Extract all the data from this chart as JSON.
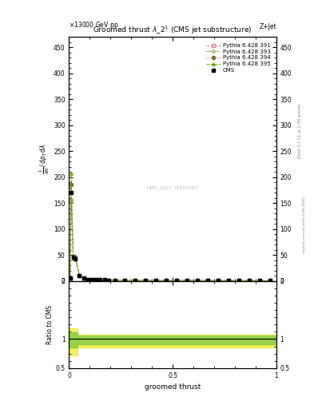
{
  "title": "Groomed thrust $\\lambda\\_2^1$ (CMS jet substructure)",
  "header_left": "\\times13000 GeV pp",
  "header_right": "Z+Jet",
  "xlabel": "groomed thrust",
  "ylabel_lines": [
    "mathrm d^2N",
    "mathrm d p_T mathrm d lambda",
    "1",
    "mathrm d N / mathrm d p_T mathrm d lambda"
  ],
  "cms_label": "CMS_2021_I1920187",
  "rivet_label": "Rivet 3.1.10, ≥ 2.7M events",
  "mcplots_label": "mcplots.cern.ch [arXiv:1306.3436]",
  "xlim": [
    0,
    1
  ],
  "ylim_main": [
    0,
    470
  ],
  "ylim_ratio": [
    0.5,
    2.0
  ],
  "ytick_main": [
    0,
    50,
    100,
    150,
    200,
    250,
    300,
    350,
    400,
    450
  ],
  "data_x": [
    0.005,
    0.01,
    0.02,
    0.03,
    0.05,
    0.07,
    0.09,
    0.11,
    0.13,
    0.15,
    0.17,
    0.19,
    0.22,
    0.27,
    0.32,
    0.37,
    0.42,
    0.47,
    0.52,
    0.57,
    0.62,
    0.67,
    0.72,
    0.77,
    0.82,
    0.87,
    0.92,
    0.97
  ],
  "cms_y": [
    5,
    170,
    45,
    42,
    10,
    5,
    3,
    2.5,
    2,
    2,
    1.8,
    1.5,
    1.3,
    1.2,
    1.1,
    1.0,
    0.9,
    0.9,
    0.85,
    0.8,
    0.8,
    0.75,
    0.7,
    0.65,
    0.6,
    0.55,
    0.5,
    0.45
  ],
  "py391_y": [
    4,
    155,
    44,
    43,
    10,
    4.8,
    2.9,
    2.4,
    1.9,
    1.9,
    1.7,
    1.4,
    1.2,
    1.1,
    1.0,
    0.95,
    0.88,
    0.85,
    0.82,
    0.78,
    0.76,
    0.72,
    0.68,
    0.63,
    0.58,
    0.53,
    0.48,
    0.42
  ],
  "py393_y": [
    4,
    155,
    44,
    43,
    10,
    4.8,
    2.9,
    2.4,
    1.9,
    1.9,
    1.7,
    1.4,
    1.2,
    1.1,
    1.0,
    0.95,
    0.88,
    0.85,
    0.82,
    0.78,
    0.76,
    0.72,
    0.68,
    0.63,
    0.58,
    0.53,
    0.48,
    0.42
  ],
  "py394_y": [
    5,
    185,
    47,
    46,
    10.5,
    5.1,
    3.1,
    2.6,
    2.0,
    2.0,
    1.85,
    1.55,
    1.35,
    1.25,
    1.15,
    1.05,
    0.95,
    0.92,
    0.88,
    0.83,
    0.81,
    0.77,
    0.73,
    0.68,
    0.62,
    0.57,
    0.52,
    0.46
  ],
  "py395_y": [
    6,
    207,
    48,
    47,
    11,
    5.2,
    3.2,
    2.7,
    2.1,
    2.1,
    1.9,
    1.6,
    1.4,
    1.3,
    1.2,
    1.1,
    1.0,
    0.96,
    0.92,
    0.87,
    0.85,
    0.81,
    0.77,
    0.71,
    0.65,
    0.6,
    0.54,
    0.48
  ],
  "color_391": "#cc8888",
  "color_393": "#aaaa66",
  "color_394": "#886633",
  "color_395": "#66aa00",
  "band_yellow": "#eeee44",
  "band_green": "#88cc44",
  "ratio_band_lo_near": 0.72,
  "ratio_band_hi_near": 1.18,
  "ratio_band_lo_far": 0.85,
  "ratio_band_hi_far": 1.07,
  "ratio_band_inner_lo": 0.91,
  "ratio_band_inner_hi": 1.06
}
